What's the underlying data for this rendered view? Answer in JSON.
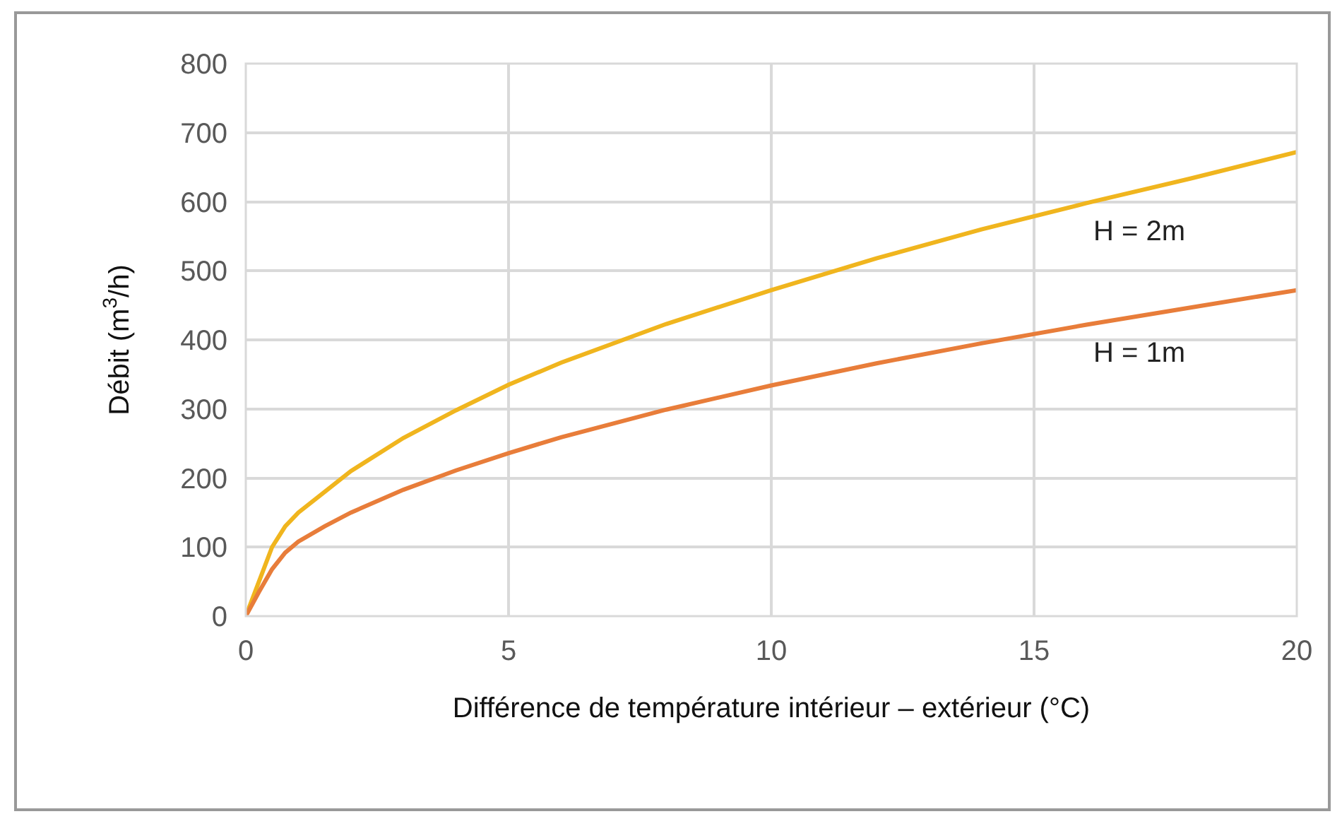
{
  "chart_data": {
    "type": "line",
    "xlabel": "Différence de température intérieur – extérieur (°C)",
    "ylabel": "Débit (m$^{3}$/h)",
    "x": [
      0,
      0.25,
      0.5,
      0.75,
      1,
      1.5,
      2,
      3,
      4,
      5,
      6,
      8,
      10,
      12,
      14,
      16,
      18,
      20
    ],
    "series": [
      {
        "name": "H = 2m",
        "color": "#f0b51e",
        "values": [
          0,
          50,
          100,
          130,
          150,
          180,
          210,
          258,
          298,
          335,
          367,
          423,
          472,
          518,
          560,
          598,
          634,
          672
        ]
      },
      {
        "name": "H = 1m",
        "color": "#e87d3a",
        "values": [
          0,
          35,
          68,
          92,
          108,
          130,
          150,
          183,
          211,
          236,
          259,
          299,
          334,
          366,
          395,
          422,
          447,
          472
        ]
      }
    ],
    "xlim": [
      0,
      20
    ],
    "xticks": [
      0,
      5,
      10,
      15,
      20
    ],
    "ylim": [
      0,
      800
    ],
    "yticks": [
      0,
      100,
      200,
      300,
      400,
      500,
      600,
      700,
      800
    ],
    "grid": true,
    "legend": false,
    "marker": "none",
    "line_style": "solid"
  }
}
